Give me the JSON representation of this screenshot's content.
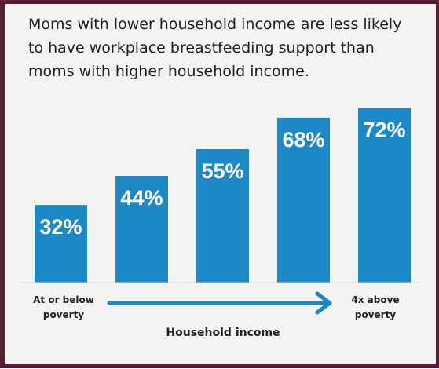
{
  "title_lines": [
    "Moms with lower household income are less likely",
    "to have workplace breastfeeding support than",
    "moms with higher household income."
  ],
  "colors": {
    "bar": "#1d88c6",
    "arrow": "#1d88c6",
    "frame": "#5a1f37"
  },
  "chart_data": {
    "type": "bar",
    "title": "Moms with lower household income are less likely to have workplace breastfeeding support than moms with higher household income.",
    "values": [
      32,
      44,
      55,
      68,
      72
    ],
    "value_labels": [
      "32%",
      "44%",
      "55%",
      "68%",
      "72%"
    ],
    "xlabel": "Household income",
    "axis_end_labels": {
      "left": [
        "At or below",
        "poverty"
      ],
      "right": [
        "4x above",
        "poverty"
      ]
    },
    "ylim": [
      0,
      100
    ],
    "grid": false,
    "legend": "none"
  }
}
